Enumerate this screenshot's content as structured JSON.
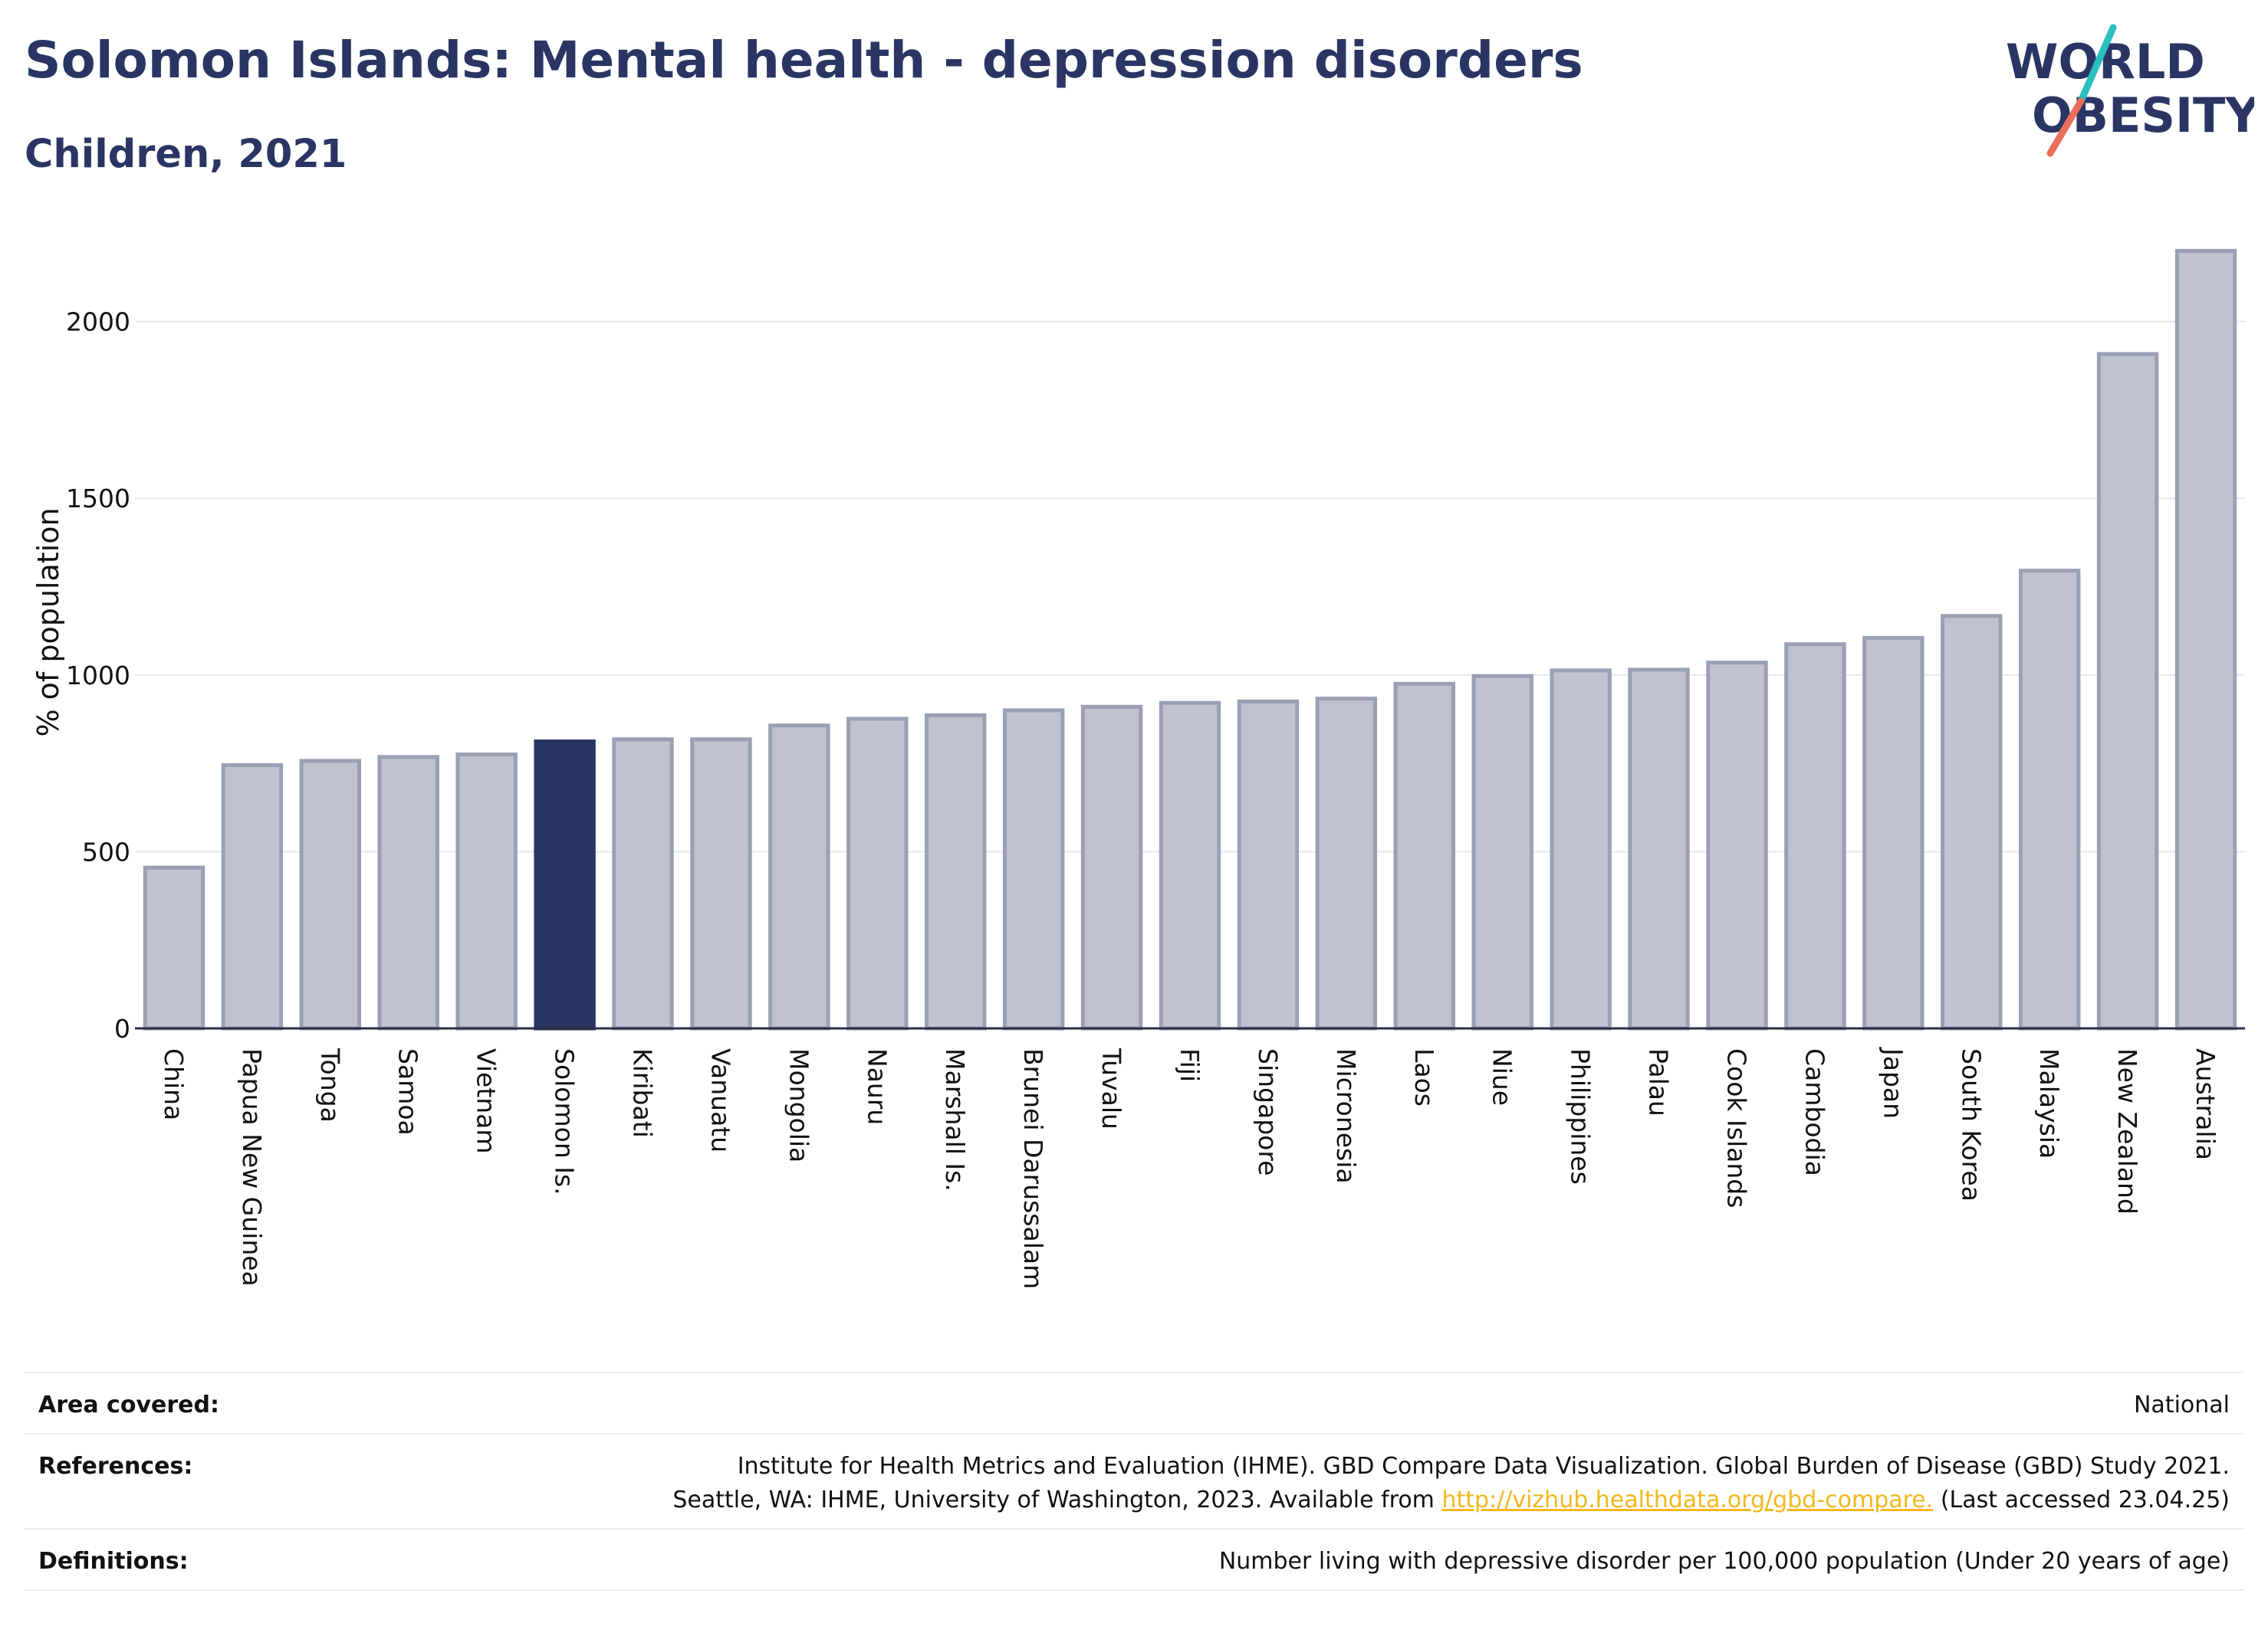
{
  "header": {
    "title": "Solomon Islands: Mental health - depression disorders",
    "subtitle": "Children, 2021"
  },
  "logo": {
    "line1": "WORLD",
    "line2": "OBESITY",
    "colors": {
      "text": "#2a3563",
      "slash_top": "#2bbfbf",
      "slash_bottom": "#e8705a"
    }
  },
  "colors": {
    "bar": "#bfc3cf",
    "bar_border": "#9aa0b4",
    "highlight": "#2a3563",
    "grid": "#e6e8ee",
    "axis": "#2a2f45"
  },
  "chart_data": {
    "type": "bar",
    "ylabel": "% of population",
    "ylim": [
      0,
      2200
    ],
    "yticks": [
      0,
      500,
      1000,
      1500,
      2000
    ],
    "grid": true,
    "highlight": "Solomon Is.",
    "categories": [
      "China",
      "Papua New Guinea",
      "Tonga",
      "Samoa",
      "Vietnam",
      "Solomon Is.",
      "Kiribati",
      "Vanuatu",
      "Mongolia",
      "Nauru",
      "Marshall Is.",
      "Brunei Darussalam",
      "Tuvalu",
      "Fiji",
      "Singapore",
      "Micronesia",
      "Laos",
      "Niue",
      "Philippines",
      "Palau",
      "Cook Islands",
      "Cambodia",
      "Japan",
      "South Korea",
      "Malaysia",
      "New Zealand",
      "Australia"
    ],
    "values": [
      455,
      745,
      757,
      768,
      775,
      812,
      818,
      818,
      857,
      876,
      886,
      900,
      910,
      921,
      925,
      933,
      975,
      997,
      1013,
      1015,
      1035,
      1087,
      1105,
      1167,
      1295,
      1908,
      2200
    ]
  },
  "table": {
    "rows": [
      {
        "key": "Area covered:",
        "value": "National"
      },
      {
        "key": "References:",
        "value_line1": "Institute for Health Metrics and Evaluation (IHME). GBD Compare Data Visualization. Global Burden of Disease (GBD) Study 2021.",
        "value_line2_pre": "Seattle, WA: IHME, University of Washington, 2023. Available from ",
        "link": "http://vizhub.healthdata.org/gbd-compare.",
        "value_line2_post": " (Last accessed 23.04.25)"
      },
      {
        "key": "Definitions:",
        "value": "Number living with depressive disorder per 100,000 population (Under 20 years of age)"
      }
    ]
  }
}
